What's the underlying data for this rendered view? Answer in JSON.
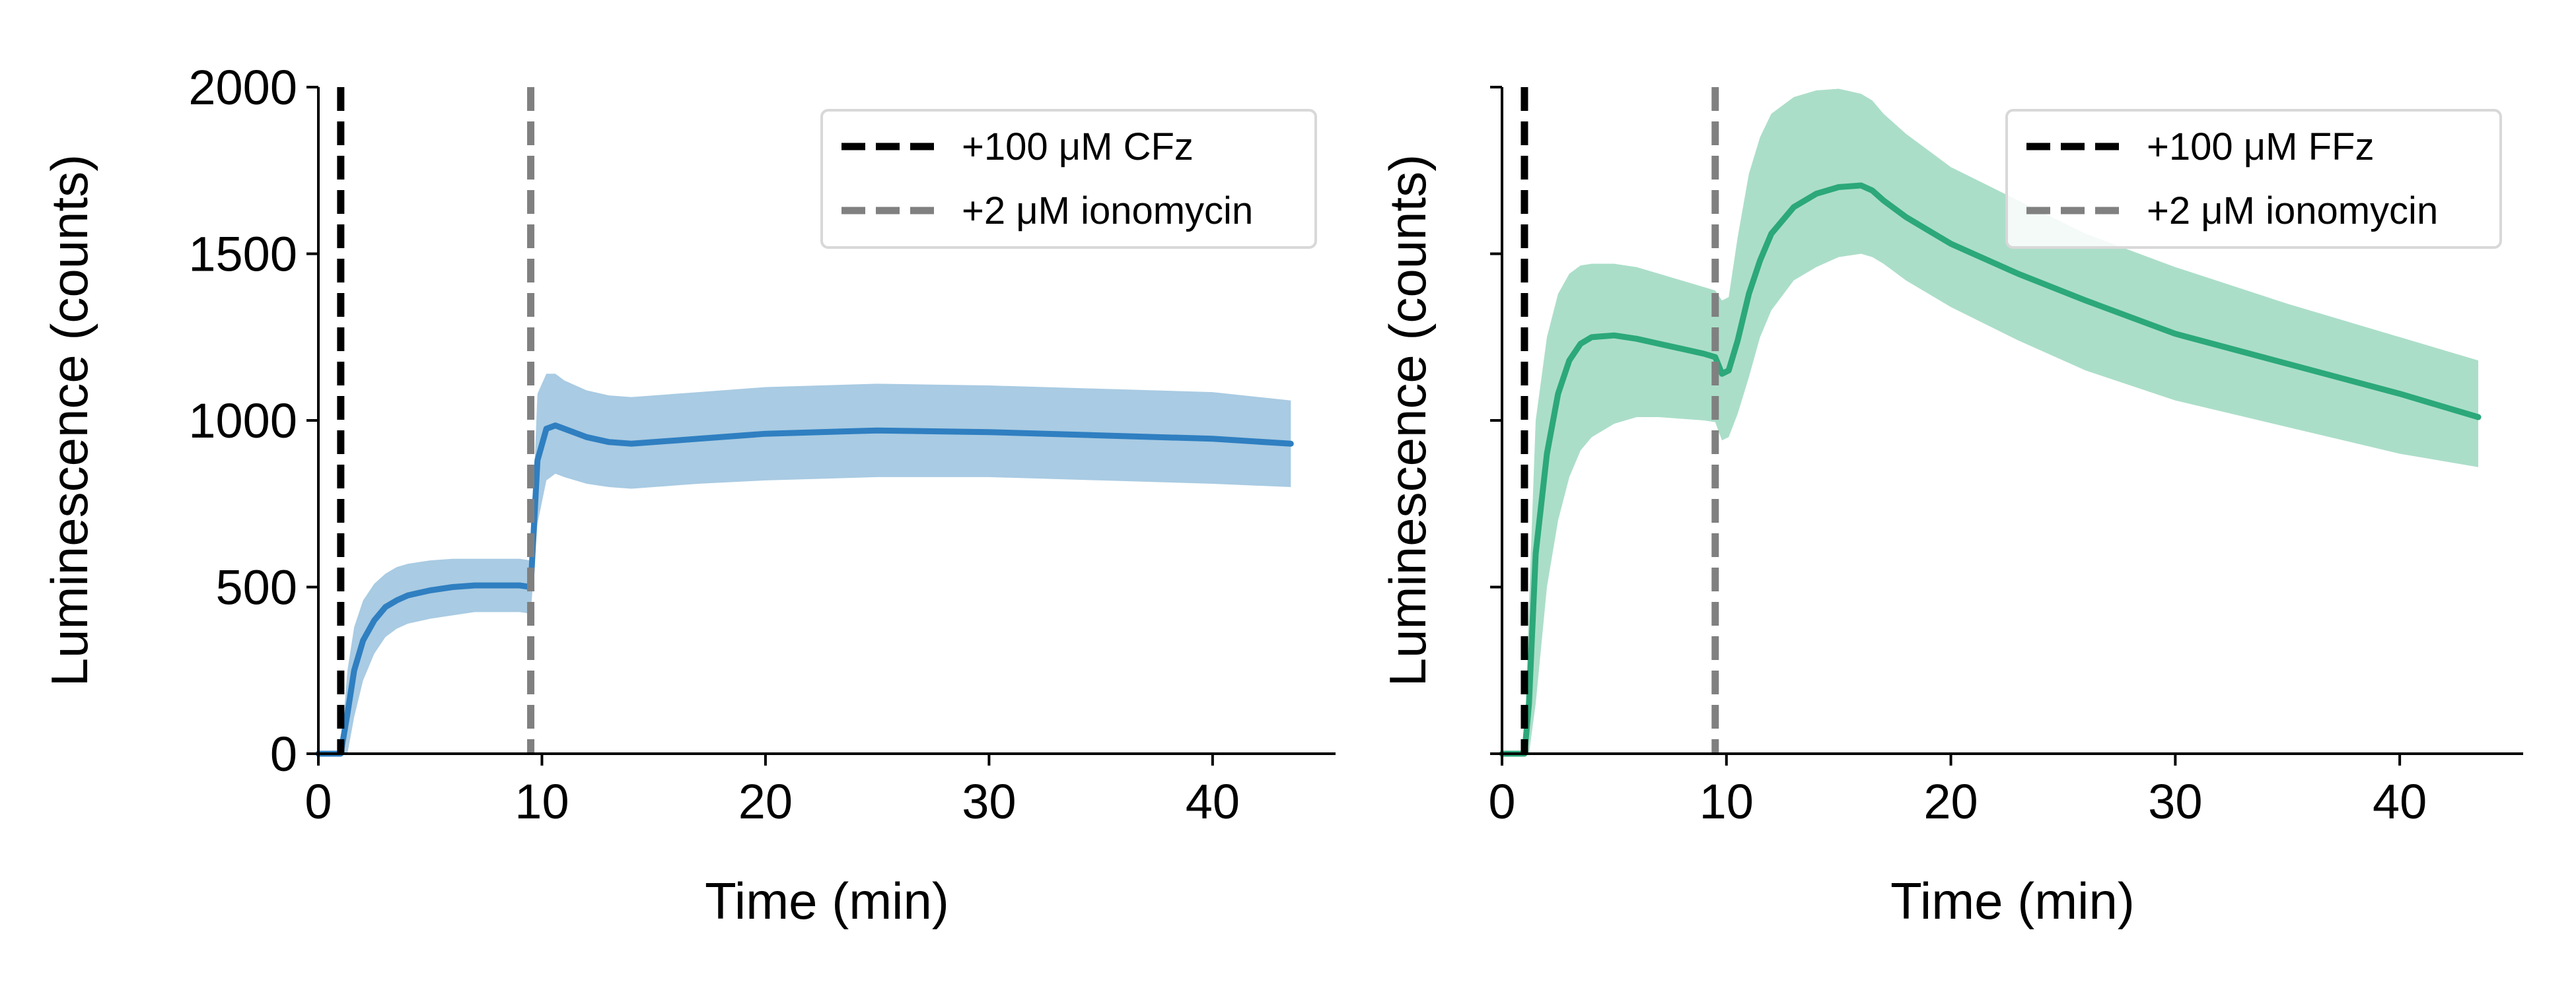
{
  "chart_data": [
    {
      "type": "line",
      "xlabel": "Time (min)",
      "ylabel": "Luminescence (counts)",
      "xlim": [
        0,
        45.5
      ],
      "ylim": [
        0,
        2000
      ],
      "xticks": [
        0,
        10,
        20,
        30,
        40
      ],
      "yticks": [
        0,
        500,
        1000,
        1500,
        2000
      ],
      "show_y_ticklabels": true,
      "grid": false,
      "legend_position": "top-right",
      "vlines": [
        {
          "x": 1.0,
          "label": "+100 μM CFz",
          "color": "#000000"
        },
        {
          "x": 9.5,
          "label": "+2 μM ionomycin",
          "color": "#808080"
        }
      ],
      "series": [
        {
          "color": "#2f7fc1",
          "band_color": "#a9cbe3",
          "x": [
            0,
            0.8,
            1.0,
            1.3,
            1.6,
            2.0,
            2.5,
            3.0,
            3.5,
            4.0,
            5.0,
            6.0,
            7.0,
            8.0,
            9.0,
            9.5,
            9.8,
            10.2,
            10.6,
            11.0,
            12.0,
            13.0,
            14.0,
            15.0,
            17.0,
            20.0,
            25.0,
            30.0,
            35.0,
            40.0,
            43.5
          ],
          "mean": [
            0,
            0,
            0,
            120,
            250,
            340,
            400,
            440,
            460,
            475,
            490,
            500,
            505,
            505,
            505,
            500,
            880,
            975,
            985,
            975,
            950,
            935,
            930,
            935,
            945,
            960,
            970,
            965,
            955,
            945,
            930
          ],
          "upper": [
            0,
            0,
            0,
            250,
            380,
            460,
            510,
            540,
            560,
            570,
            580,
            585,
            585,
            585,
            585,
            580,
            1080,
            1140,
            1140,
            1120,
            1090,
            1075,
            1070,
            1075,
            1085,
            1100,
            1110,
            1105,
            1095,
            1085,
            1060
          ],
          "lower": [
            0,
            0,
            0,
            0,
            110,
            220,
            300,
            350,
            375,
            390,
            405,
            415,
            425,
            425,
            425,
            420,
            690,
            820,
            840,
            830,
            810,
            800,
            795,
            800,
            810,
            820,
            830,
            830,
            820,
            810,
            800
          ]
        }
      ]
    },
    {
      "type": "line",
      "xlabel": "Time (min)",
      "ylabel": "Luminescence (counts)",
      "xlim": [
        0,
        45.5
      ],
      "ylim": [
        0,
        2000
      ],
      "xticks": [
        0,
        10,
        20,
        30,
        40
      ],
      "yticks": [
        0,
        500,
        1000,
        1500,
        2000
      ],
      "show_y_ticklabels": false,
      "grid": false,
      "legend_position": "top-right",
      "vlines": [
        {
          "x": 1.0,
          "label": "+100 μM FFz",
          "color": "#000000"
        },
        {
          "x": 9.5,
          "label": "+2 μM ionomycin",
          "color": "#808080"
        }
      ],
      "series": [
        {
          "color": "#2ca87a",
          "band_color": "#abdec9",
          "x": [
            0,
            1.0,
            1.2,
            1.5,
            2.0,
            2.5,
            3.0,
            3.5,
            4.0,
            5.0,
            6.0,
            7.0,
            8.0,
            9.0,
            9.5,
            9.8,
            10.1,
            10.5,
            11.0,
            11.5,
            12.0,
            13.0,
            14.0,
            15.0,
            16.0,
            16.5,
            17.0,
            18.0,
            20.0,
            23.0,
            26.0,
            30.0,
            35.0,
            40.0,
            43.5
          ],
          "mean": [
            0,
            0,
            150,
            600,
            900,
            1080,
            1180,
            1230,
            1250,
            1255,
            1245,
            1230,
            1215,
            1200,
            1190,
            1140,
            1150,
            1240,
            1380,
            1480,
            1560,
            1640,
            1680,
            1700,
            1705,
            1690,
            1660,
            1610,
            1530,
            1440,
            1360,
            1260,
            1170,
            1080,
            1010
          ],
          "upper": [
            0,
            0,
            450,
            1000,
            1250,
            1380,
            1440,
            1465,
            1470,
            1470,
            1460,
            1440,
            1420,
            1400,
            1390,
            1360,
            1370,
            1550,
            1740,
            1850,
            1920,
            1970,
            1990,
            1995,
            1980,
            1960,
            1920,
            1860,
            1760,
            1660,
            1560,
            1460,
            1350,
            1250,
            1180
          ],
          "lower": [
            0,
            0,
            0,
            150,
            500,
            700,
            830,
            910,
            950,
            990,
            1010,
            1010,
            1005,
            1000,
            995,
            940,
            950,
            1020,
            1130,
            1250,
            1330,
            1420,
            1460,
            1490,
            1500,
            1490,
            1470,
            1420,
            1340,
            1240,
            1150,
            1060,
            980,
            900,
            860
          ]
        }
      ]
    }
  ]
}
